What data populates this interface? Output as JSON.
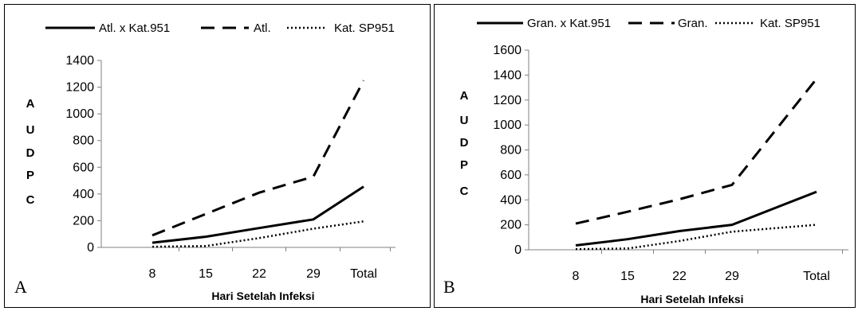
{
  "chart_data": [
    {
      "type": "line",
      "panel_label": "A",
      "categories": [
        "8",
        "15",
        "22",
        "29",
        "Total"
      ],
      "series": [
        {
          "name": "Atl. x Kat.951",
          "style": "solid",
          "values": [
            35,
            80,
            145,
            210,
            455
          ]
        },
        {
          "name": "Atl.",
          "style": "dashed",
          "values": [
            90,
            250,
            410,
            530,
            1250
          ]
        },
        {
          "name": "Kat. SP951",
          "style": "dotted",
          "values": [
            5,
            10,
            70,
            140,
            195
          ]
        }
      ],
      "ylim": [
        0,
        1400
      ],
      "yticks": [
        "0",
        "200",
        "400",
        "600",
        "800",
        "1000",
        "1200",
        "1400"
      ],
      "ylabel": [
        "A",
        "U",
        "D",
        "P",
        "C"
      ],
      "xlabel": "Hari Setelah Infeksi",
      "legend_position": "top",
      "grid": false,
      "line_color": "#000000"
    },
    {
      "type": "line",
      "panel_label": "B",
      "categories": [
        "8",
        "15",
        "22",
        "29",
        "Total"
      ],
      "series": [
        {
          "name": "Gran. x Kat.951",
          "style": "solid",
          "values": [
            35,
            85,
            150,
            200,
            465
          ]
        },
        {
          "name": "Gran.",
          "style": "dashed",
          "values": [
            210,
            305,
            405,
            520,
            1370
          ]
        },
        {
          "name": "Kat. SP951",
          "style": "dotted",
          "values": [
            5,
            10,
            70,
            145,
            200
          ]
        }
      ],
      "ylim": [
        0,
        1600
      ],
      "yticks": [
        "0",
        "200",
        "400",
        "600",
        "800",
        "1000",
        "1200",
        "1400",
        "1600"
      ],
      "ylabel": [
        "A",
        "U",
        "D",
        "P",
        "C"
      ],
      "xlabel": "Hari Setelah Infeksi",
      "legend_position": "top",
      "grid": false,
      "line_color": "#000000"
    }
  ]
}
